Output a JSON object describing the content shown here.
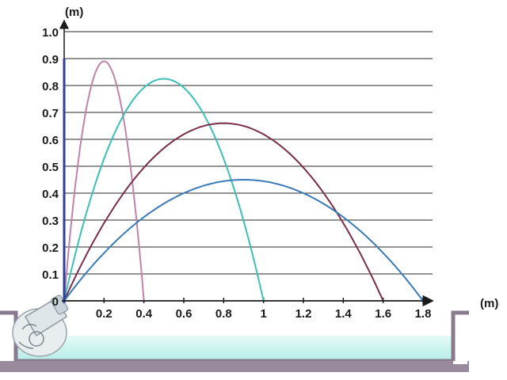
{
  "chart_data": {
    "type": "line",
    "xlabel": "(m)",
    "ylabel": "(m)",
    "xlim": [
      0,
      1.8
    ],
    "ylim": [
      0,
      1.0
    ],
    "x_ticks": [
      {
        "value": 0.2,
        "label": "0.2"
      },
      {
        "value": 0.4,
        "label": "0.4"
      },
      {
        "value": 0.6,
        "label": "0.6"
      },
      {
        "value": 0.8,
        "label": "0.8"
      },
      {
        "value": 1.0,
        "label": "1"
      },
      {
        "value": 1.2,
        "label": "1.2"
      },
      {
        "value": 1.4,
        "label": "1.4"
      },
      {
        "value": 1.6,
        "label": "1.6"
      },
      {
        "value": 1.8,
        "label": "1.8"
      }
    ],
    "y_ticks": [
      {
        "value": 0,
        "label": "0"
      },
      {
        "value": 0.1,
        "label": "0.1"
      },
      {
        "value": 0.2,
        "label": "0.2"
      },
      {
        "value": 0.3,
        "label": "0.3"
      },
      {
        "value": 0.4,
        "label": "0.4"
      },
      {
        "value": 0.5,
        "label": "0.5"
      },
      {
        "value": 0.6,
        "label": "0.6"
      },
      {
        "value": 0.7,
        "label": "0.7"
      },
      {
        "value": 0.8,
        "label": "0.8"
      },
      {
        "value": 0.9,
        "label": "0.9"
      },
      {
        "value": 1.0,
        "label": "1.0"
      }
    ],
    "grid": "horizontal",
    "series": [
      {
        "range": 0.4,
        "peak_x": 0.2,
        "peak_y": 0.89,
        "color": "#c084a8"
      },
      {
        "range": 1.0,
        "peak_x": 0.5,
        "peak_y": 0.825,
        "color": "#3cbfb8"
      },
      {
        "range": 1.6,
        "peak_x": 0.8,
        "peak_y": 0.66,
        "color": "#7a2e4a"
      },
      {
        "range": 1.8,
        "peak_x": 0.9,
        "peak_y": 0.45,
        "color": "#3a7ab8"
      }
    ],
    "colors": {
      "grid": "#2a2a2a",
      "axis": "#1a1a1a",
      "y_axis_accent": "#2e3fa0",
      "basin_frame": "#8a7a8e",
      "water": "#c8f5f0"
    }
  }
}
